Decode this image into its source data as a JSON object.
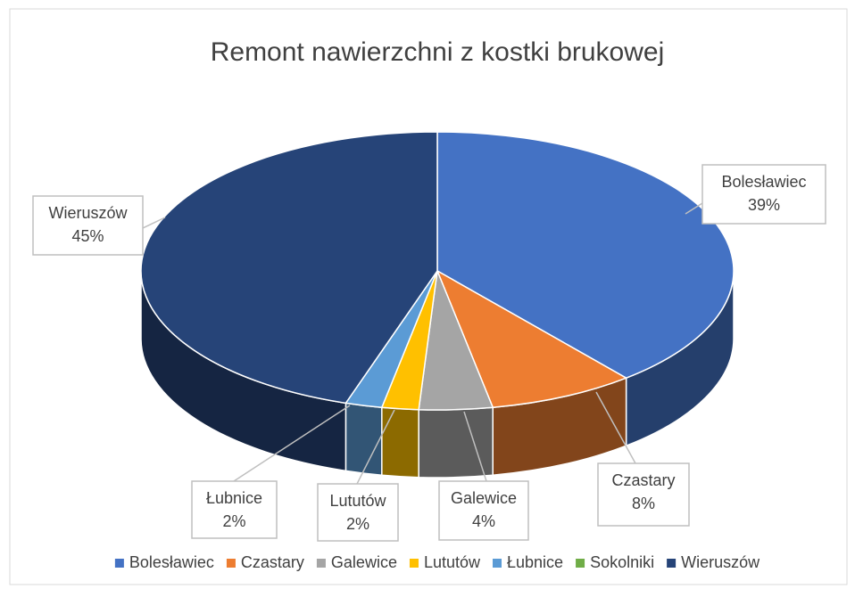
{
  "chart_data": {
    "type": "pie3d",
    "title": "Remont nawierzchni z kostki brukowej",
    "categories": [
      "Bolesławiec",
      "Czastary",
      "Galewice",
      "Lututów",
      "Łubnice",
      "Sokolniki",
      "Wieruszów"
    ],
    "values": [
      39,
      8,
      4,
      2,
      2,
      0,
      45
    ],
    "value_labels": [
      "39%",
      "8%",
      "4%",
      "2%",
      "2%",
      null,
      "45%"
    ],
    "colors": [
      "#4472c4",
      "#ed7d31",
      "#a5a5a5",
      "#ffc000",
      "#5b9bd5",
      "#70ad47",
      "#264478"
    ],
    "legend": "bottom"
  }
}
